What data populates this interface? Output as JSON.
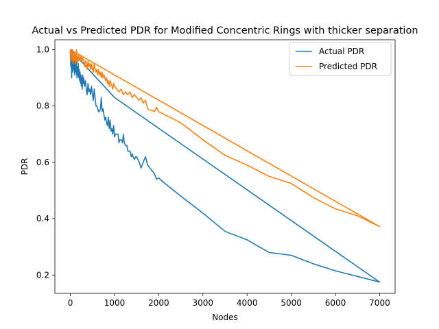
{
  "chart_data": {
    "type": "line",
    "title": "Actual vs Predicted PDR for Modified Concentric Rings with thicker separation",
    "xlabel": "Nodes",
    "ylabel": "PDR",
    "xlim": [
      -350,
      7350
    ],
    "ylim": [
      0.135,
      1.035
    ],
    "xticks": [
      0,
      1000,
      2000,
      3000,
      4000,
      5000,
      6000,
      7000
    ],
    "xtick_labels": [
      "0",
      "1000",
      "2000",
      "3000",
      "4000",
      "5000",
      "6000",
      "7000"
    ],
    "yticks": [
      0.2,
      0.4,
      0.6,
      0.8,
      1.0
    ],
    "ytick_labels": [
      "0.2",
      "0.4",
      "0.6",
      "0.8",
      "1.0"
    ],
    "grid": false,
    "legend_position": "top-right",
    "series": [
      {
        "name": "Actual PDR",
        "color": "#1f77b4",
        "points": [
          [
            0,
            1.0
          ],
          [
            10,
            0.94
          ],
          [
            20,
            0.97
          ],
          [
            30,
            0.9
          ],
          [
            40,
            1.0
          ],
          [
            50,
            0.95
          ],
          [
            60,
            0.92
          ],
          [
            70,
            0.97
          ],
          [
            80,
            0.93
          ],
          [
            90,
            0.96
          ],
          [
            100,
            0.91
          ],
          [
            110,
            0.95
          ],
          [
            120,
            0.92
          ],
          [
            130,
            0.96
          ],
          [
            140,
            0.93
          ],
          [
            150,
            0.9
          ],
          [
            160,
            0.94
          ],
          [
            170,
            0.91
          ],
          [
            180,
            0.95
          ],
          [
            190,
            0.9
          ],
          [
            200,
            0.93
          ],
          [
            210,
            0.89
          ],
          [
            220,
            0.92
          ],
          [
            230,
            0.88
          ],
          [
            240,
            0.91
          ],
          [
            250,
            0.87
          ],
          [
            260,
            0.9
          ],
          [
            270,
            0.86
          ],
          [
            280,
            0.91
          ],
          [
            290,
            0.88
          ],
          [
            300,
            0.9
          ],
          [
            320,
            0.87
          ],
          [
            340,
            0.89
          ],
          [
            360,
            0.86
          ],
          [
            380,
            0.84
          ],
          [
            400,
            0.88
          ],
          [
            420,
            0.85
          ],
          [
            440,
            0.86
          ],
          [
            460,
            0.84
          ],
          [
            480,
            0.87
          ],
          [
            500,
            0.84
          ],
          [
            520,
            0.82
          ],
          [
            540,
            0.86
          ],
          [
            560,
            0.83
          ],
          [
            580,
            0.8
          ],
          [
            600,
            0.8
          ],
          [
            620,
            0.79
          ],
          [
            640,
            0.78
          ],
          [
            660,
            0.78
          ],
          [
            680,
            0.79
          ],
          [
            700,
            0.83
          ],
          [
            720,
            0.78
          ],
          [
            740,
            0.79
          ],
          [
            760,
            0.77
          ],
          [
            780,
            0.75
          ],
          [
            800,
            0.76
          ],
          [
            820,
            0.74
          ],
          [
            840,
            0.73
          ],
          [
            860,
            0.76
          ],
          [
            880,
            0.72
          ],
          [
            900,
            0.75
          ],
          [
            920,
            0.71
          ],
          [
            940,
            0.72
          ],
          [
            960,
            0.7
          ],
          [
            980,
            0.73
          ],
          [
            1000,
            0.69
          ],
          [
            1020,
            0.7
          ],
          [
            1050,
            0.7
          ],
          [
            1080,
            0.7
          ],
          [
            1100,
            0.67
          ],
          [
            1120,
            0.68
          ],
          [
            1150,
            0.68
          ],
          [
            1180,
            0.67
          ],
          [
            1200,
            0.7
          ],
          [
            1220,
            0.67
          ],
          [
            1250,
            0.66
          ],
          [
            1280,
            0.66
          ],
          [
            1300,
            0.64
          ],
          [
            1320,
            0.64
          ],
          [
            1350,
            0.64
          ],
          [
            1380,
            0.62
          ],
          [
            1400,
            0.63
          ],
          [
            1420,
            0.62
          ],
          [
            1450,
            0.61
          ],
          [
            1480,
            0.62
          ],
          [
            1500,
            0.62
          ],
          [
            1530,
            0.61
          ],
          [
            1560,
            0.6
          ],
          [
            1600,
            0.58
          ],
          [
            1650,
            0.6
          ],
          [
            1700,
            0.62
          ],
          [
            1750,
            0.59
          ],
          [
            1800,
            0.58
          ],
          [
            1850,
            0.57
          ],
          [
            1900,
            0.56
          ],
          [
            1950,
            0.54
          ],
          [
            2000,
            0.545
          ],
          [
            2100,
            0.53
          ],
          [
            2500,
            0.48
          ],
          [
            3000,
            0.42
          ],
          [
            3500,
            0.355
          ],
          [
            4000,
            0.325
          ],
          [
            4500,
            0.28
          ],
          [
            5000,
            0.27
          ],
          [
            5500,
            0.24
          ],
          [
            6000,
            0.215
          ],
          [
            7000,
            0.175
          ],
          [
            1000,
            0.83
          ],
          [
            0,
            1.0
          ]
        ]
      },
      {
        "name": "Predicted PDR",
        "color": "#ff7f0e",
        "points": [
          [
            0,
            1.0
          ],
          [
            10,
            0.98
          ],
          [
            20,
            0.96
          ],
          [
            30,
            1.0
          ],
          [
            40,
            0.97
          ],
          [
            50,
            0.99
          ],
          [
            60,
            0.95
          ],
          [
            70,
            0.98
          ],
          [
            80,
            0.96
          ],
          [
            90,
            0.99
          ],
          [
            100,
            0.97
          ],
          [
            110,
            0.95
          ],
          [
            120,
            0.98
          ],
          [
            130,
            0.96
          ],
          [
            140,
            1.0
          ],
          [
            150,
            0.98
          ],
          [
            160,
            0.95
          ],
          [
            170,
            0.97
          ],
          [
            180,
            0.96
          ],
          [
            190,
            0.98
          ],
          [
            200,
            0.97
          ],
          [
            220,
            0.96
          ],
          [
            240,
            0.98
          ],
          [
            260,
            0.96
          ],
          [
            280,
            0.97
          ],
          [
            300,
            0.96
          ],
          [
            320,
            0.94
          ],
          [
            340,
            0.96
          ],
          [
            360,
            0.95
          ],
          [
            380,
            0.93
          ],
          [
            400,
            0.96
          ],
          [
            420,
            0.94
          ],
          [
            440,
            0.95
          ],
          [
            460,
            0.93
          ],
          [
            480,
            0.95
          ],
          [
            500,
            0.93
          ],
          [
            520,
            0.92
          ],
          [
            540,
            0.95
          ],
          [
            560,
            0.93
          ],
          [
            580,
            0.92
          ],
          [
            600,
            0.93
          ],
          [
            620,
            0.91
          ],
          [
            640,
            0.93
          ],
          [
            660,
            0.91
          ],
          [
            680,
            0.92
          ],
          [
            700,
            0.9
          ],
          [
            720,
            0.92
          ],
          [
            740,
            0.9
          ],
          [
            760,
            0.91
          ],
          [
            780,
            0.9
          ],
          [
            800,
            0.89
          ],
          [
            820,
            0.9
          ],
          [
            840,
            0.88
          ],
          [
            860,
            0.89
          ],
          [
            880,
            0.87
          ],
          [
            900,
            0.89
          ],
          [
            920,
            0.88
          ],
          [
            940,
            0.87
          ],
          [
            960,
            0.86
          ],
          [
            980,
            0.88
          ],
          [
            1000,
            0.87
          ],
          [
            1050,
            0.86
          ],
          [
            1100,
            0.85
          ],
          [
            1150,
            0.86
          ],
          [
            1200,
            0.84
          ],
          [
            1250,
            0.85
          ],
          [
            1300,
            0.84
          ],
          [
            1350,
            0.85
          ],
          [
            1400,
            0.83
          ],
          [
            1450,
            0.84
          ],
          [
            1500,
            0.83
          ],
          [
            1550,
            0.82
          ],
          [
            1600,
            0.83
          ],
          [
            1650,
            0.81
          ],
          [
            1700,
            0.82
          ],
          [
            1750,
            0.79
          ],
          [
            1800,
            0.785
          ],
          [
            1850,
            0.785
          ],
          [
            1900,
            0.78
          ],
          [
            1950,
            0.795
          ],
          [
            2000,
            0.78
          ],
          [
            2500,
            0.74
          ],
          [
            3000,
            0.68
          ],
          [
            3500,
            0.625
          ],
          [
            4000,
            0.59
          ],
          [
            4500,
            0.55
          ],
          [
            5000,
            0.525
          ],
          [
            5500,
            0.475
          ],
          [
            6000,
            0.435
          ],
          [
            6500,
            0.41
          ],
          [
            7000,
            0.372
          ],
          [
            0,
            1.0
          ]
        ]
      }
    ]
  }
}
